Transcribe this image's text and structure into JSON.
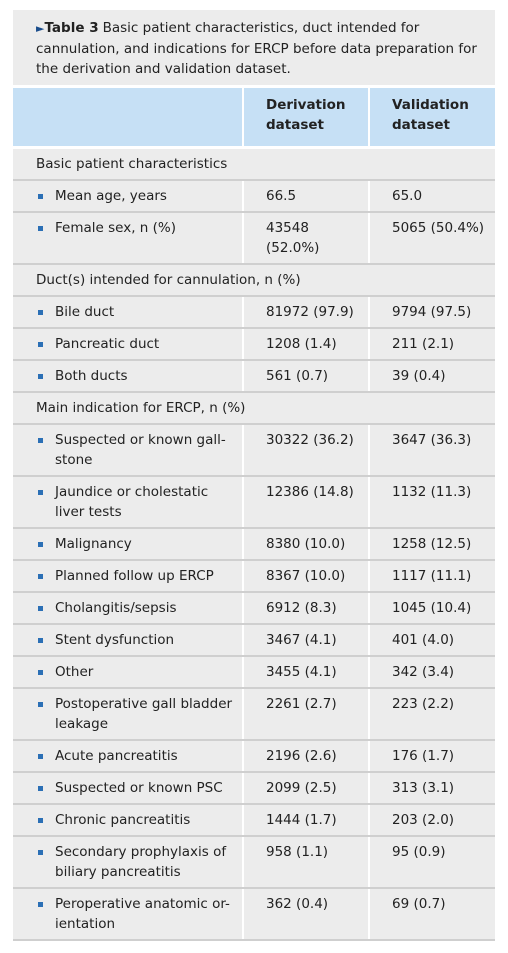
{
  "caption": {
    "label": "Table 3",
    "text": "Basic patient characteristics, duct intended for cannulation, and indications for ERCP before data preparation for the derivation and validation dataset."
  },
  "table": {
    "headers": [
      "Derivation dataset",
      "Validation dataset"
    ],
    "sections": [
      {
        "title": "Basic patient characteristics",
        "rows": [
          [
            "Mean age, years",
            "66.5",
            "65.0"
          ],
          [
            "Female sex, n (%)",
            "43548 (52.0%)",
            "5065 (50.4%)"
          ]
        ]
      },
      {
        "title": "Duct(s) intended for cannulation, n (%)",
        "rows": [
          [
            "Bile duct",
            "81972 (97.9)",
            "9794 (97.5)"
          ],
          [
            "Pancreatic duct",
            "1208 (1.4)",
            "211 (2.1)"
          ],
          [
            "Both ducts",
            "561 (0.7)",
            "39 (0.4)"
          ]
        ]
      },
      {
        "title": "Main indication for ERCP, n (%)",
        "rows": [
          [
            "Suspected or known gall-stone",
            "30322 (36.2)",
            "3647 (36.3)"
          ],
          [
            "Jaundice or cholestatic liver tests",
            "12386 (14.8)",
            "1132 (11.3)"
          ],
          [
            "Malignancy",
            "8380 (10.0)",
            "1258 (12.5)"
          ],
          [
            "Planned follow up ERCP",
            "8367 (10.0)",
            "1117 (11.1)"
          ],
          [
            "Cholangitis/sepsis",
            "6912 (8.3)",
            "1045 (10.4)"
          ],
          [
            "Stent dysfunction",
            "3467 (4.1)",
            "401 (4.0)"
          ],
          [
            "Other",
            "3455 (4.1)",
            "342 (3.4)"
          ],
          [
            "Postoperative gall bladder leakage",
            "2261 (2.7)",
            "223 (2.2)"
          ],
          [
            "Acute pancreatitis",
            "2196 (2.6)",
            "176 (1.7)"
          ],
          [
            "Suspected or known PSC",
            "2099 (2.5)",
            "313 (3.1)"
          ],
          [
            "Chronic pancreatitis",
            "1444 (1.7)",
            "203 (2.0)"
          ],
          [
            "Secondary prophylaxis of biliary pancreatitis",
            "958 (1.1)",
            "95 (0.9)"
          ],
          [
            "Peroperative anatomic or-ientation",
            "362 (0.4)",
            "69 (0.7)"
          ]
        ]
      }
    ]
  }
}
